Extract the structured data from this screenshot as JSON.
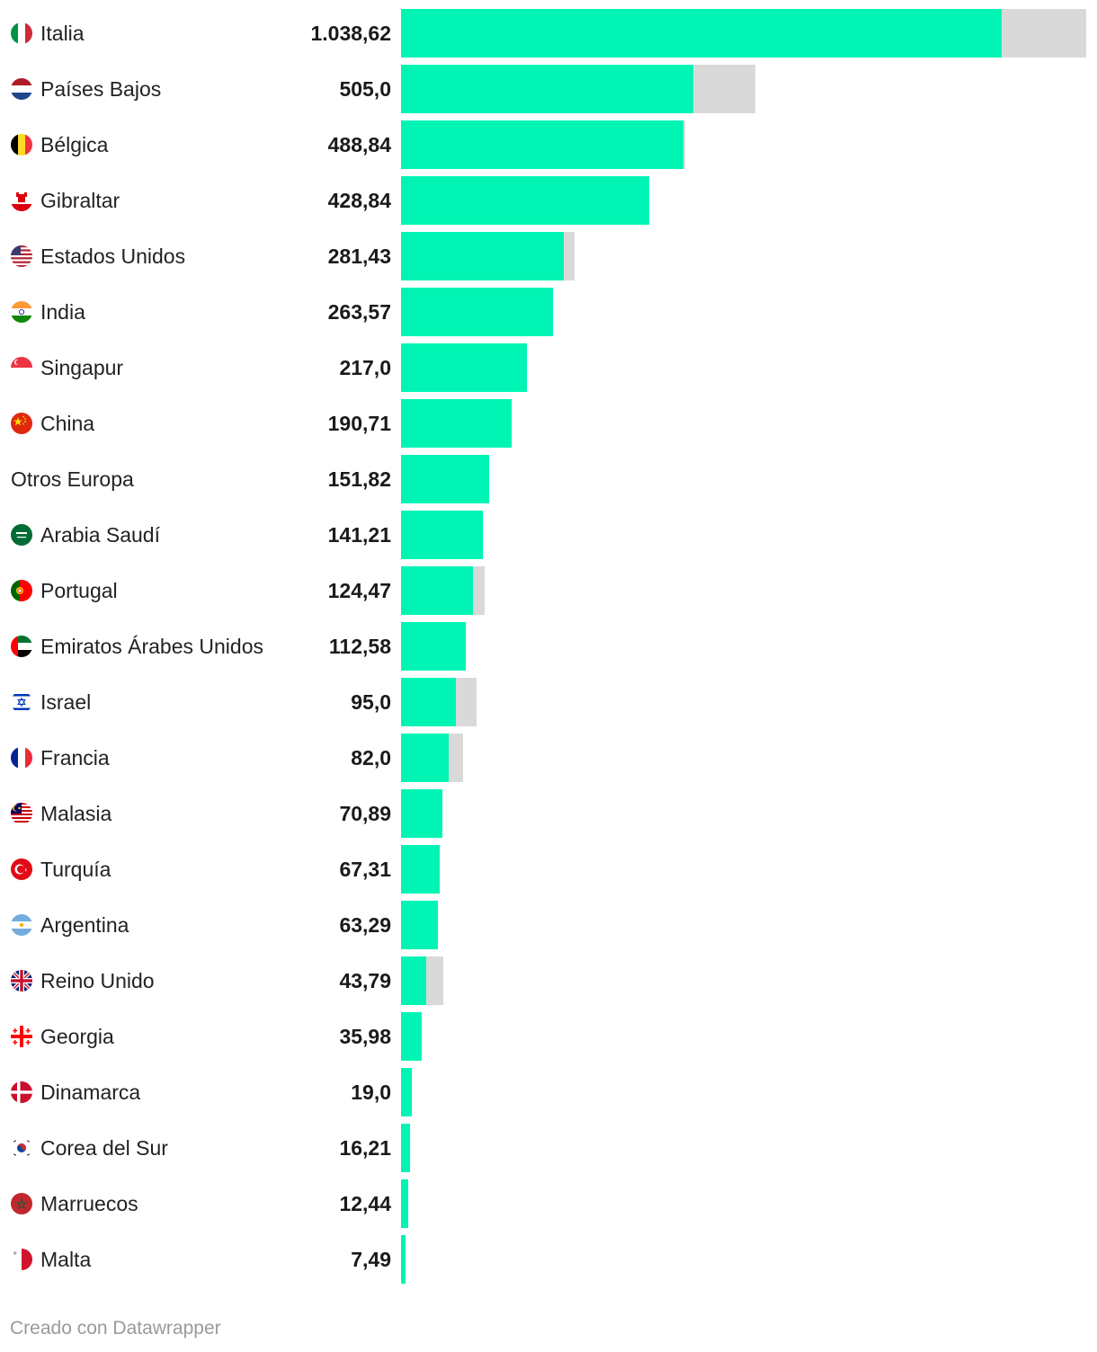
{
  "chart_data": {
    "type": "bar",
    "orientation": "horizontal",
    "colors": {
      "primary": "#00f5b5",
      "secondary": "#d9d9d9"
    },
    "categories": [
      {
        "label": "Italia",
        "value_label": "1.038,62",
        "value": 1038.62,
        "total": 1185,
        "flag": "italy-flag"
      },
      {
        "label": "Países Bajos",
        "value_label": "505,0",
        "value": 505.0,
        "total": 612,
        "flag": "netherlands-flag"
      },
      {
        "label": "Bélgica",
        "value_label": "488,84",
        "value": 488.84,
        "total": 491,
        "flag": "belgium-flag"
      },
      {
        "label": "Gibraltar",
        "value_label": "428,84",
        "value": 428.84,
        "total": 428.84,
        "flag": "gibraltar-flag"
      },
      {
        "label": "Estados Unidos",
        "value_label": "281,43",
        "value": 281.43,
        "total": 300,
        "flag": "usa-flag"
      },
      {
        "label": "India",
        "value_label": "263,57",
        "value": 263.57,
        "total": 263.57,
        "flag": "india-flag"
      },
      {
        "label": "Singapur",
        "value_label": "217,0",
        "value": 217.0,
        "total": 217.0,
        "flag": "singapore-flag"
      },
      {
        "label": "China",
        "value_label": "190,71",
        "value": 190.71,
        "total": 190.71,
        "flag": "china-flag"
      },
      {
        "label": "Otros Europa",
        "value_label": "151,82",
        "value": 151.82,
        "total": 151.82,
        "flag": ""
      },
      {
        "label": "Arabia Saudí",
        "value_label": "141,21",
        "value": 141.21,
        "total": 141.21,
        "flag": "saudi-arabia-flag"
      },
      {
        "label": "Portugal",
        "value_label": "124,47",
        "value": 124.47,
        "total": 145,
        "flag": "portugal-flag"
      },
      {
        "label": "Emiratos Árabes Unidos",
        "value_label": "112,58",
        "value": 112.58,
        "total": 112.58,
        "flag": "uae-flag"
      },
      {
        "label": "Israel",
        "value_label": "95,0",
        "value": 95.0,
        "total": 130,
        "flag": "israel-flag"
      },
      {
        "label": "Francia",
        "value_label": "82,0",
        "value": 82.0,
        "total": 107,
        "flag": "france-flag"
      },
      {
        "label": "Malasia",
        "value_label": "70,89",
        "value": 70.89,
        "total": 70.89,
        "flag": "malaysia-flag"
      },
      {
        "label": "Turquía",
        "value_label": "67,31",
        "value": 67.31,
        "total": 67.31,
        "flag": "turkey-flag"
      },
      {
        "label": "Argentina",
        "value_label": "63,29",
        "value": 63.29,
        "total": 63.29,
        "flag": "argentina-flag"
      },
      {
        "label": "Reino Unido",
        "value_label": "43,79",
        "value": 43.79,
        "total": 73,
        "flag": "uk-flag"
      },
      {
        "label": "Georgia",
        "value_label": "35,98",
        "value": 35.98,
        "total": 35.98,
        "flag": "georgia-flag"
      },
      {
        "label": "Dinamarca",
        "value_label": "19,0",
        "value": 19.0,
        "total": 19.0,
        "flag": "denmark-flag"
      },
      {
        "label": "Corea del Sur",
        "value_label": "16,21",
        "value": 16.21,
        "total": 16.21,
        "flag": "south-korea-flag"
      },
      {
        "label": "Marruecos",
        "value_label": "12,44",
        "value": 12.44,
        "total": 12.44,
        "flag": "morocco-flag"
      },
      {
        "label": "Malta",
        "value_label": "7,49",
        "value": 7.49,
        "total": 7.49,
        "flag": "malta-flag"
      }
    ],
    "xlim": [
      0,
      1185
    ]
  },
  "footer": {
    "credit": "Creado con Datawrapper"
  }
}
